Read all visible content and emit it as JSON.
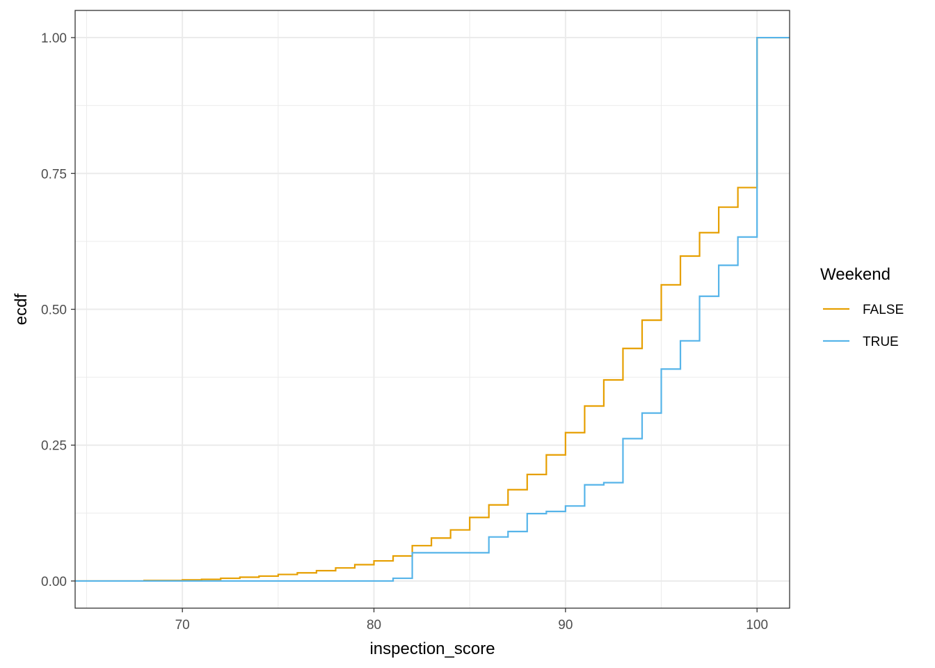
{
  "chart_data": {
    "type": "line",
    "subtype": "ecdf-step",
    "title": "",
    "xlabel": "inspection_score",
    "ylabel": "ecdf",
    "xlim": [
      64.4,
      101.7
    ],
    "ylim": [
      -0.05,
      1.05
    ],
    "x_ticks": [
      70,
      80,
      90,
      100
    ],
    "x_tick_labels": [
      "70",
      "80",
      "90",
      "100"
    ],
    "y_ticks": [
      0,
      0.25,
      0.5,
      0.75,
      1.0
    ],
    "y_tick_labels": [
      "0.00",
      "0.25",
      "0.50",
      "0.75",
      "1.00"
    ],
    "grid": true,
    "legend": {
      "title": "Weekend",
      "placement": "right"
    },
    "series": [
      {
        "name": "FALSE",
        "color": "#E69F00",
        "x": [
          66,
          68,
          70,
          71,
          72,
          73,
          74,
          75,
          76,
          77,
          78,
          79,
          80,
          81,
          82,
          83,
          84,
          85,
          86,
          87,
          88,
          89,
          90,
          91,
          92,
          93,
          94,
          95,
          96,
          97,
          98,
          99,
          100
        ],
        "y": [
          0.0,
          0.001,
          0.002,
          0.003,
          0.005,
          0.007,
          0.009,
          0.012,
          0.015,
          0.019,
          0.024,
          0.03,
          0.037,
          0.046,
          0.065,
          0.079,
          0.094,
          0.117,
          0.14,
          0.168,
          0.196,
          0.232,
          0.273,
          0.322,
          0.37,
          0.428,
          0.48,
          0.545,
          0.598,
          0.641,
          0.688,
          0.724,
          1.0
        ]
      },
      {
        "name": "TRUE",
        "color": "#56B4E9",
        "x": [
          81,
          82,
          86,
          87,
          88,
          89,
          90,
          91,
          92,
          93,
          94,
          95,
          96,
          97,
          98,
          99,
          100
        ],
        "y": [
          0.005,
          0.052,
          0.081,
          0.091,
          0.124,
          0.128,
          0.138,
          0.177,
          0.181,
          0.262,
          0.309,
          0.39,
          0.442,
          0.524,
          0.581,
          0.633,
          1.0
        ]
      }
    ]
  }
}
